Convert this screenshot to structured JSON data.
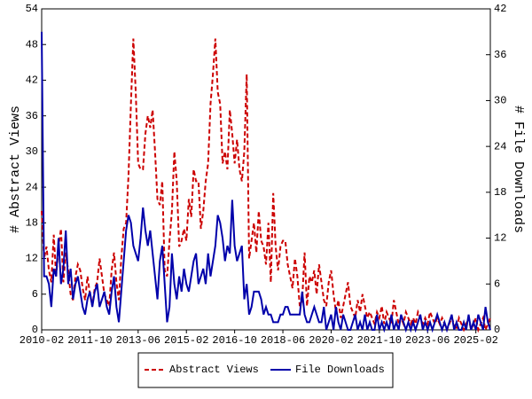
{
  "chart_data": {
    "type": "line",
    "x": [
      "2010-02",
      "2010-03",
      "2010-04",
      "2010-05",
      "2010-06",
      "2010-07",
      "2010-08",
      "2010-09",
      "2010-10",
      "2010-11",
      "2010-12",
      "2011-01",
      "2011-02",
      "2011-03",
      "2011-04",
      "2011-05",
      "2011-06",
      "2011-07",
      "2011-08",
      "2011-09",
      "2011-10",
      "2011-11",
      "2011-12",
      "2012-01",
      "2012-02",
      "2012-03",
      "2012-04",
      "2012-05",
      "2012-06",
      "2012-07",
      "2012-08",
      "2012-09",
      "2012-10",
      "2012-11",
      "2012-12",
      "2013-01",
      "2013-02",
      "2013-03",
      "2013-04",
      "2013-05",
      "2013-06",
      "2013-07",
      "2013-08",
      "2013-09",
      "2013-10",
      "2013-11",
      "2013-12",
      "2014-01",
      "2014-02",
      "2014-03",
      "2014-04",
      "2014-05",
      "2014-06",
      "2014-07",
      "2014-08",
      "2014-09",
      "2014-10",
      "2014-11",
      "2014-12",
      "2015-01",
      "2015-02",
      "2015-03",
      "2015-04",
      "2015-05",
      "2015-06",
      "2015-07",
      "2015-08",
      "2015-09",
      "2015-10",
      "2015-11",
      "2015-12",
      "2016-01",
      "2016-02",
      "2016-03",
      "2016-04",
      "2016-05",
      "2016-06",
      "2016-07",
      "2016-08",
      "2016-09",
      "2016-10",
      "2016-11",
      "2016-12",
      "2017-01",
      "2017-02",
      "2017-03",
      "2017-04",
      "2017-05",
      "2017-06",
      "2017-07",
      "2017-08",
      "2017-09",
      "2017-10",
      "2017-11",
      "2017-12",
      "2018-01",
      "2018-02",
      "2018-03",
      "2018-04",
      "2018-05",
      "2018-06",
      "2018-07",
      "2018-08",
      "2018-09",
      "2018-10",
      "2018-11",
      "2018-12",
      "2019-01",
      "2019-02",
      "2019-03",
      "2019-04",
      "2019-05",
      "2019-06",
      "2019-07",
      "2019-08",
      "2019-09",
      "2019-10",
      "2019-11",
      "2019-12",
      "2020-01",
      "2020-02",
      "2020-03",
      "2020-04",
      "2020-05",
      "2020-06",
      "2020-07",
      "2020-08",
      "2020-09",
      "2020-10",
      "2020-11",
      "2020-12",
      "2021-01",
      "2021-02",
      "2021-03",
      "2021-04",
      "2021-05",
      "2021-06",
      "2021-07",
      "2021-08",
      "2021-09",
      "2021-10",
      "2021-11",
      "2021-12",
      "2022-01",
      "2022-02",
      "2022-03",
      "2022-04",
      "2022-05",
      "2022-06",
      "2022-07",
      "2022-08",
      "2022-09",
      "2022-10",
      "2022-11",
      "2022-12",
      "2023-01",
      "2023-02",
      "2023-03",
      "2023-04",
      "2023-05",
      "2023-06",
      "2023-07",
      "2023-08",
      "2023-09",
      "2023-10",
      "2023-11",
      "2023-12",
      "2024-01",
      "2024-02",
      "2024-03",
      "2024-04",
      "2024-05",
      "2024-06",
      "2024-07",
      "2024-08",
      "2024-09",
      "2024-10",
      "2024-11",
      "2024-12",
      "2025-01",
      "2025-02",
      "2025-03",
      "2025-04",
      "2025-05",
      "2025-06",
      "2025-07",
      "2025-08"
    ],
    "xlim": [
      "2010-02",
      "2025-08"
    ],
    "xticks": [
      "2010-02",
      "2011-10",
      "2013-06",
      "2015-02",
      "2016-10",
      "2018-06",
      "2020-02",
      "2021-10",
      "2023-06",
      "2025-02"
    ],
    "ylabel": "# Abstract Views",
    "y2label": "# File Downloads",
    "ylim": [
      0,
      54
    ],
    "yticks": [
      0,
      6,
      12,
      18,
      24,
      30,
      36,
      42,
      48,
      54
    ],
    "y2lim": [
      0,
      42
    ],
    "y2ticks": [
      0,
      6,
      12,
      18,
      24,
      30,
      36,
      42
    ],
    "series": [
      {
        "name": "Abstract Views",
        "color": "#cc0000",
        "dashed": true,
        "values": [
          20,
          12,
          14,
          10,
          8,
          16,
          9,
          14,
          17,
          8,
          13,
          10,
          6,
          5,
          9,
          11,
          10,
          7,
          5,
          9,
          6,
          4,
          7,
          8,
          12,
          9,
          6,
          5,
          4,
          10,
          13,
          8,
          5,
          12,
          17,
          18,
          26,
          38,
          49,
          40,
          28,
          27,
          27,
          33,
          36,
          34,
          37,
          30,
          22,
          21,
          25,
          10,
          9,
          15,
          20,
          30,
          25,
          14,
          15,
          17,
          15,
          22,
          19,
          27,
          25,
          25,
          17,
          20,
          25,
          28,
          38,
          43,
          49,
          40,
          38,
          28,
          30,
          27,
          37,
          33,
          28,
          32,
          27,
          25,
          30,
          43,
          12,
          15,
          18,
          13,
          20,
          15,
          14,
          11,
          18,
          8,
          23,
          14,
          10,
          14,
          15,
          15,
          11,
          9,
          7,
          12,
          9,
          4,
          5,
          13,
          4,
          9,
          8,
          10,
          6,
          11,
          8,
          5,
          4,
          8,
          10,
          6,
          3,
          5,
          2,
          4,
          6,
          8,
          4,
          3,
          2,
          5,
          3,
          6,
          4,
          2,
          3,
          2,
          1,
          3,
          2,
          4,
          1,
          3,
          2,
          1,
          5,
          3,
          1,
          2,
          1,
          3,
          2,
          1,
          2,
          1,
          3,
          2,
          1,
          2,
          1,
          3,
          2,
          1,
          2,
          1,
          2,
          1,
          0,
          1,
          2,
          1,
          0,
          2,
          1,
          0,
          1,
          2,
          0,
          1,
          2,
          0,
          1,
          2,
          0,
          1,
          2
        ]
      },
      {
        "name": "File Downloads",
        "color": "#0000aa",
        "axis": "y2",
        "values": [
          39,
          7,
          7,
          6,
          3,
          8,
          7,
          12,
          6,
          8,
          13,
          6,
          8,
          4,
          6,
          7,
          5,
          3,
          2,
          4,
          5,
          3,
          5,
          6,
          3,
          4,
          5,
          3,
          2,
          5,
          7,
          3,
          1,
          5,
          9,
          13,
          15,
          14,
          11,
          10,
          9,
          12,
          16,
          13,
          11,
          13,
          10,
          7,
          4,
          9,
          11,
          6,
          1,
          3,
          10,
          6,
          4,
          7,
          5,
          8,
          6,
          5,
          7,
          9,
          10,
          6,
          7,
          8,
          6,
          10,
          7,
          9,
          11,
          15,
          14,
          12,
          9,
          11,
          10,
          17,
          11,
          9,
          10,
          11,
          4,
          6,
          2,
          3,
          5,
          5,
          5,
          4,
          2,
          3,
          2,
          2,
          1,
          1,
          1,
          2,
          2,
          3,
          3,
          2,
          2,
          2,
          2,
          2,
          5,
          2,
          1,
          1,
          2,
          3,
          2,
          1,
          1,
          3,
          0,
          1,
          2,
          0,
          3,
          1,
          0,
          2,
          1,
          0,
          0,
          1,
          2,
          0,
          1,
          0,
          2,
          0,
          1,
          0,
          0,
          2,
          0,
          1,
          0,
          1,
          0,
          2,
          0,
          1,
          0,
          2,
          1,
          0,
          1,
          0,
          1,
          0,
          1,
          2,
          0,
          1,
          0,
          1,
          0,
          1,
          2,
          1,
          0,
          1,
          0,
          1,
          2,
          0,
          1,
          0,
          0,
          1,
          0,
          2,
          0,
          1,
          0,
          2,
          1,
          0,
          3,
          1,
          0
        ]
      }
    ]
  }
}
